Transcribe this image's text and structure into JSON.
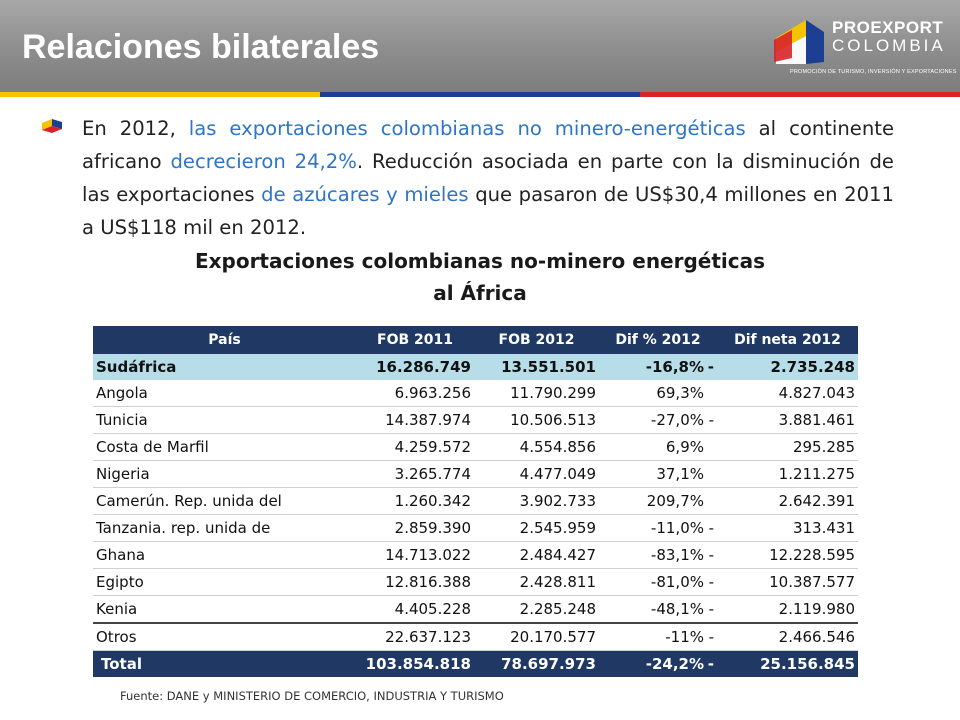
{
  "header": {
    "title": "Relaciones bilaterales",
    "logo": {
      "word1": "PROEXPORT",
      "word2": "COLOMBIA",
      "tagline": "PROMOCIÓN DE TURISMO, INVERSIÓN Y EXPORTACIONES"
    }
  },
  "colors": {
    "header_bg": "#8d8d8d",
    "accent_blue": "#2e75c6",
    "table_header": "#1f3864",
    "highlight_row": "#b7dde8",
    "flag_yellow": "#f5c400",
    "flag_blue": "#1c3f94",
    "flag_red": "#d8232a"
  },
  "bullet": {
    "seg1": "En 2012, ",
    "seg2": "las exportaciones colombianas no minero-energéticas",
    "seg3": " al continente africano ",
    "seg4": "decrecieron 24,2%",
    "seg5": ". Reducción asociada en parte con la disminución de las exportaciones ",
    "seg6": "de azúcares y mieles",
    "seg7": " que pasaron de US$30,4 millones en 2011 a US$118 mil en 2012."
  },
  "table": {
    "title_line1": "Exportaciones colombianas no-minero energéticas",
    "title_line2": "al África",
    "headers": [
      "País",
      "FOB 2011",
      "FOB 2012",
      "Dif % 2012",
      "Dif neta 2012"
    ],
    "rows": [
      [
        "Sudáfrica",
        "16.286.749",
        "13.551.501",
        "-16,8%",
        "-",
        "2.735.248"
      ],
      [
        "Angola",
        "6.963.256",
        "11.790.299",
        "69,3%",
        "",
        "4.827.043"
      ],
      [
        "Tunicia",
        "14.387.974",
        "10.506.513",
        "-27,0%",
        "-",
        "3.881.461"
      ],
      [
        "Costa de Marfil",
        "4.259.572",
        "4.554.856",
        "6,9%",
        "",
        "295.285"
      ],
      [
        "Nigeria",
        "3.265.774",
        "4.477.049",
        "37,1%",
        "",
        "1.211.275"
      ],
      [
        "Camerún. Rep. unida del",
        "1.260.342",
        "3.902.733",
        "209,7%",
        "",
        "2.642.391"
      ],
      [
        "Tanzania. rep. unida de",
        "2.859.390",
        "2.545.959",
        "-11,0%",
        "-",
        "313.431"
      ],
      [
        "Ghana",
        "14.713.022",
        "2.484.427",
        "-83,1%",
        "-",
        "12.228.595"
      ],
      [
        "Egipto",
        "12.816.388",
        "2.428.811",
        "-81,0%",
        "-",
        "10.387.577"
      ],
      [
        "Kenia",
        "4.405.228",
        "2.285.248",
        "-48,1%",
        "-",
        "2.119.980"
      ],
      [
        "Otros",
        "22.637.123",
        "20.170.577",
        "-11%",
        "-",
        "2.466.546"
      ]
    ],
    "total": [
      "Total",
      "103.854.818",
      "78.697.973",
      "-24,2%",
      "-",
      "25.156.845"
    ]
  },
  "source": "Fuente: DANE y MINISTERIO DE COMERCIO, INDUSTRIA Y TURISMO"
}
